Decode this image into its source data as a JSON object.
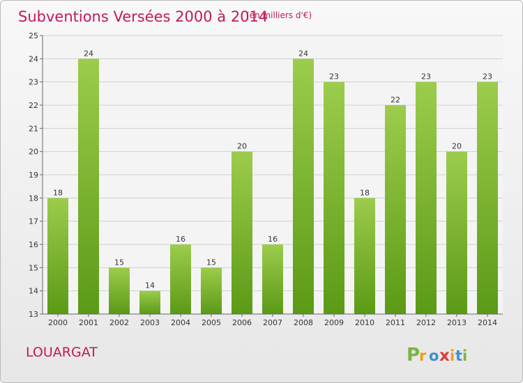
{
  "title": "Subventions Versées 2000 à 2014",
  "subtitle": "(en milliers d'€)",
  "commune": "LOUARGAT",
  "brand": {
    "text": "Proxiti",
    "letters": [
      "P",
      "r",
      "o",
      "x",
      "i",
      "t",
      "i"
    ],
    "letter_colors": [
      "#7cb342",
      "#f39c12",
      "#3b8fd6",
      "#e53935",
      "#f39c12",
      "#3b8fd6",
      "#7cb342"
    ]
  },
  "colors": {
    "title": "#c2185b",
    "bar_light": "#9ccc4c",
    "bar_dark": "#5b9a16",
    "grid": "#cfcfcf"
  },
  "chart_data": {
    "type": "bar",
    "categories": [
      "2000",
      "2001",
      "2002",
      "2003",
      "2004",
      "2005",
      "2006",
      "2007",
      "2008",
      "2009",
      "2010",
      "2011",
      "2012",
      "2013",
      "2014"
    ],
    "values": [
      18,
      24,
      15,
      14,
      16,
      15,
      20,
      16,
      24,
      23,
      18,
      22,
      23,
      20,
      23
    ],
    "title": "Subventions Versées 2000 à 2014",
    "subtitle": "(en milliers d'€)",
    "xlabel": "",
    "ylabel": "",
    "ylim": [
      13,
      25
    ],
    "yticks": [
      13,
      14,
      15,
      16,
      17,
      18,
      19,
      20,
      21,
      22,
      23,
      24,
      25
    ],
    "grid": true,
    "legend": "none"
  }
}
